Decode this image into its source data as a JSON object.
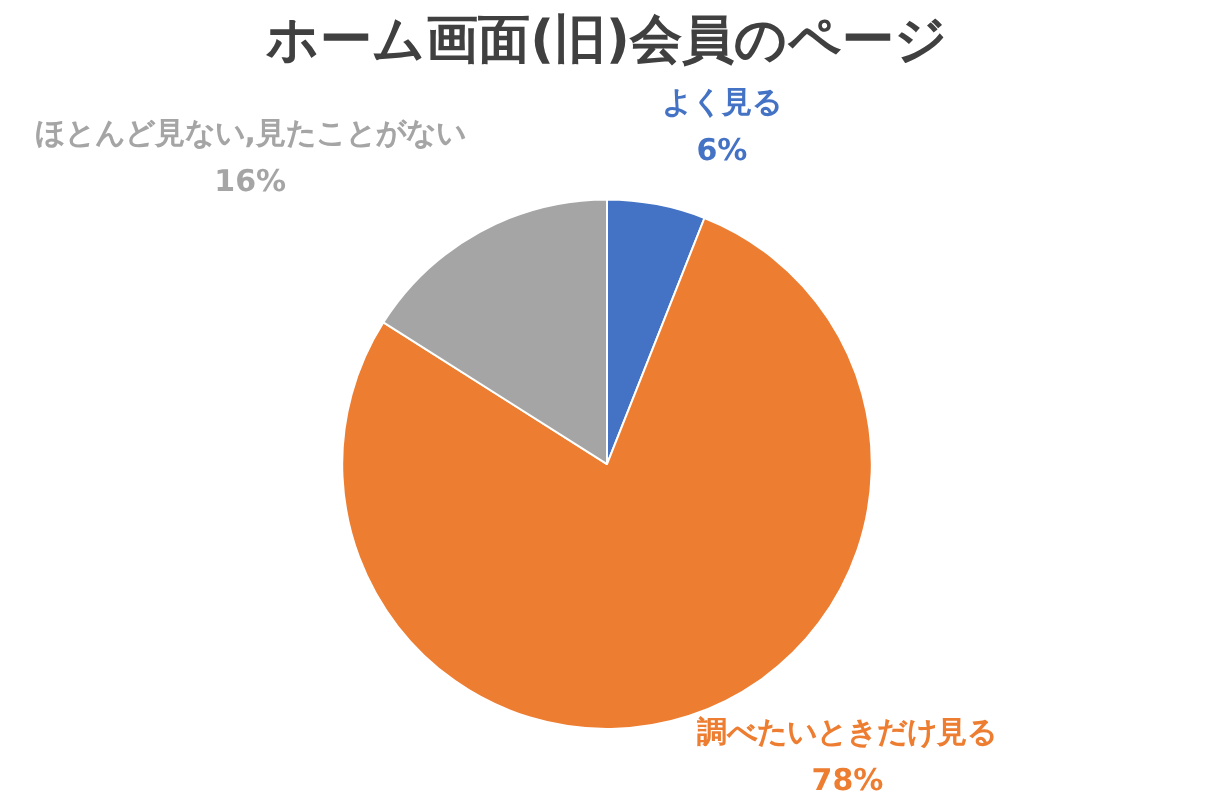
{
  "chart_data": {
    "type": "pie",
    "title": "ホーム画面(旧)会員のページ",
    "categories": [
      "よく見る",
      "調べたいときだけ見る",
      "ほとんど見ない,見たことがない"
    ],
    "values": [
      6,
      78,
      16
    ],
    "colors": [
      "#4472c4",
      "#ed7d31",
      "#a5a5a5"
    ],
    "value_labels": [
      "6%",
      "78%",
      "16%"
    ],
    "legend": false
  }
}
